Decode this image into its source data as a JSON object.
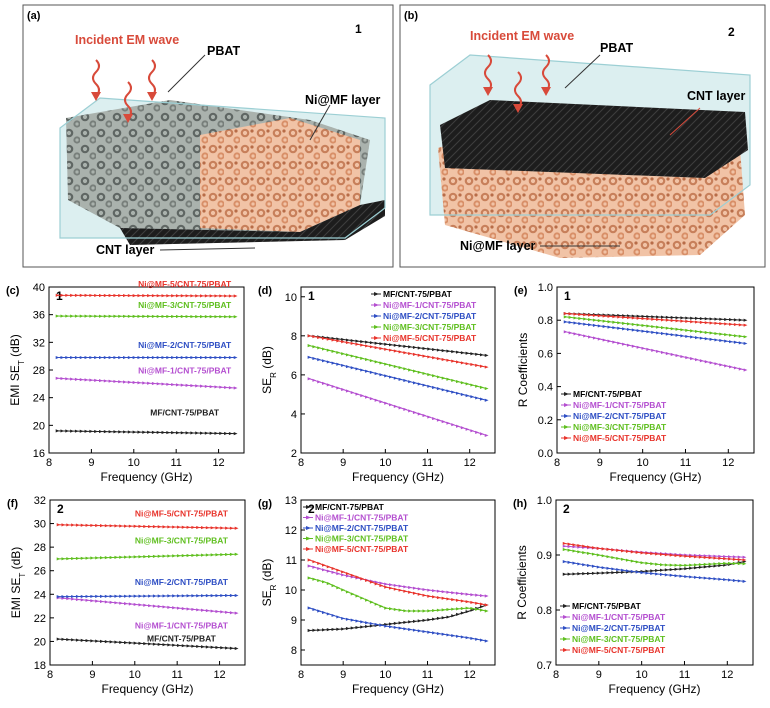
{
  "colors": {
    "black": "#222222",
    "purple": "#b44fd0",
    "blue": "#2f4fc4",
    "green": "#5fbf1f",
    "red": "#e8342c",
    "arrow": "#d84a3a",
    "foam": "#e3a27e",
    "box": "#bfe1e4",
    "cnt": "#1d1d1d"
  },
  "schematics": [
    {
      "panel": "(a)",
      "number": "1",
      "labels": {
        "incident": "Incident EM wave",
        "pbat": "PBAT",
        "middle": "Ni@MF layer",
        "bottom": "CNT layer"
      }
    },
    {
      "panel": "(b)",
      "number": "2",
      "labels": {
        "incident": "Incident EM wave",
        "pbat": "PBAT",
        "middle": "CNT layer",
        "bottom": "Ni@MF layer"
      }
    }
  ],
  "chart_data": [
    {
      "panel": "(c)",
      "number": "1",
      "type": "line",
      "xlabel": "Frequency (GHz)",
      "ylabel": "EMI SE_T (dB)",
      "xlim": [
        8,
        12.6
      ],
      "xticks": [
        8,
        9,
        10,
        11,
        12
      ],
      "ylim": [
        16,
        40
      ],
      "yticks": [
        16,
        20,
        24,
        28,
        32,
        36,
        40
      ],
      "legend": "inline",
      "series": [
        {
          "name": "MF/CNT-75/PBAT",
          "color": "black",
          "x": [
            8.2,
            12.4
          ],
          "y": [
            19.2,
            18.8
          ],
          "label_at": [
            11.2,
            21.4
          ]
        },
        {
          "name": "Ni@MF-1/CNT-75/PBAT",
          "color": "purple",
          "x": [
            8.2,
            12.4
          ],
          "y": [
            26.8,
            25.4
          ],
          "label_at": [
            11.2,
            27.5
          ]
        },
        {
          "name": "Ni@MF-2/CNT-75/PBAT",
          "color": "blue",
          "x": [
            8.2,
            12.4
          ],
          "y": [
            29.8,
            29.8
          ],
          "label_at": [
            11.2,
            31.2
          ]
        },
        {
          "name": "Ni@MF-3/CNT-75/PBAT",
          "color": "green",
          "x": [
            8.2,
            12.4
          ],
          "y": [
            35.8,
            35.7
          ],
          "label_at": [
            11.2,
            37.0
          ]
        },
        {
          "name": "Ni@MF-5/CNT-75/PBAT",
          "color": "red",
          "x": [
            8.2,
            12.4
          ],
          "y": [
            38.8,
            38.7
          ],
          "label_at": [
            11.2,
            40.0
          ]
        }
      ]
    },
    {
      "panel": "(d)",
      "number": "1",
      "type": "line",
      "xlabel": "Frequency (GHz)",
      "ylabel": "SE_R (dB)",
      "xlim": [
        8,
        12.6
      ],
      "xticks": [
        8,
        9,
        10,
        11,
        12
      ],
      "ylim": [
        2,
        10.5
      ],
      "yticks": [
        2,
        4,
        6,
        8,
        10
      ],
      "legend": "top-right",
      "series": [
        {
          "name": "MF/CNT-75/PBAT",
          "color": "black",
          "x": [
            8.2,
            12.4
          ],
          "y": [
            8.0,
            7.0
          ]
        },
        {
          "name": "Ni@MF-1/CNT-75/PBAT",
          "color": "purple",
          "x": [
            8.2,
            12.4
          ],
          "y": [
            5.8,
            2.9
          ]
        },
        {
          "name": "Ni@MF-2/CNT-75/PBAT",
          "color": "blue",
          "x": [
            8.2,
            12.4
          ],
          "y": [
            6.9,
            4.7
          ]
        },
        {
          "name": "Ni@MF-3/CNT-75/PBAT",
          "color": "green",
          "x": [
            8.2,
            12.4
          ],
          "y": [
            7.5,
            5.3
          ]
        },
        {
          "name": "Ni@MF-5/CNT-75/PBAT",
          "color": "red",
          "x": [
            8.2,
            12.4
          ],
          "y": [
            8.0,
            6.4
          ]
        }
      ]
    },
    {
      "panel": "(e)",
      "number": "1",
      "type": "line",
      "xlabel": "Frequency (GHz)",
      "ylabel": "R Coefficients",
      "xlim": [
        8,
        12.6
      ],
      "xticks": [
        8,
        9,
        10,
        11,
        12
      ],
      "ylim": [
        0,
        1.0
      ],
      "yticks": [
        0.0,
        0.2,
        0.4,
        0.6,
        0.8,
        1.0
      ],
      "legend": "bottom-left",
      "series": [
        {
          "name": "MF/CNT-75/PBAT",
          "color": "black",
          "x": [
            8.2,
            12.4
          ],
          "y": [
            0.84,
            0.8
          ]
        },
        {
          "name": "Ni@MF-1/CNT-75/PBAT",
          "color": "purple",
          "x": [
            8.2,
            12.4
          ],
          "y": [
            0.73,
            0.5
          ]
        },
        {
          "name": "Ni@MF-2/CNT-75/PBAT",
          "color": "blue",
          "x": [
            8.2,
            12.4
          ],
          "y": [
            0.79,
            0.66
          ]
        },
        {
          "name": "Ni@MF-3/CNT-75/PBAT",
          "color": "green",
          "x": [
            8.2,
            12.4
          ],
          "y": [
            0.82,
            0.7
          ]
        },
        {
          "name": "Ni@MF-5/CNT-75/PBAT",
          "color": "red",
          "x": [
            8.2,
            12.4
          ],
          "y": [
            0.84,
            0.77
          ]
        }
      ]
    },
    {
      "panel": "(f)",
      "number": "2",
      "type": "line",
      "xlabel": "Frequency (GHz)",
      "ylabel": "EMI SE_T (dB)",
      "xlim": [
        8,
        12.6
      ],
      "xticks": [
        8,
        9,
        10,
        11,
        12
      ],
      "ylim": [
        18,
        32
      ],
      "yticks": [
        18,
        20,
        22,
        24,
        26,
        28,
        30,
        32
      ],
      "legend": "inline",
      "series": [
        {
          "name": "MF/CNT-75/PBAT",
          "color": "black",
          "x": [
            8.2,
            12.4
          ],
          "y": [
            20.2,
            19.4
          ],
          "label_at": [
            11.1,
            20.0
          ]
        },
        {
          "name": "Ni@MF-1/CNT-75/PBAT",
          "color": "purple",
          "x": [
            8.2,
            12.4
          ],
          "y": [
            23.7,
            22.4
          ],
          "label_at": [
            11.1,
            21.1
          ]
        },
        {
          "name": "Ni@MF-2/CNT-75/PBAT",
          "color": "blue",
          "x": [
            8.2,
            12.4
          ],
          "y": [
            23.8,
            23.9
          ],
          "label_at": [
            11.1,
            24.8
          ]
        },
        {
          "name": "Ni@MF-3/CNT-75/PBAT",
          "color": "green",
          "x": [
            8.2,
            12.4
          ],
          "y": [
            27.0,
            27.4
          ],
          "label_at": [
            11.1,
            28.3
          ]
        },
        {
          "name": "Ni@MF-5/CNT-75/PBAT",
          "color": "red",
          "x": [
            8.2,
            12.4
          ],
          "y": [
            29.9,
            29.6
          ],
          "label_at": [
            11.1,
            30.6
          ]
        }
      ]
    },
    {
      "panel": "(g)",
      "number": "2",
      "type": "line",
      "xlabel": "Frequency (GHz)",
      "ylabel": "SE_R (dB)",
      "xlim": [
        8,
        12.6
      ],
      "xticks": [
        8,
        9,
        10,
        11,
        12
      ],
      "ylim": [
        7.5,
        13
      ],
      "yticks": [
        8,
        9,
        10,
        11,
        12,
        13
      ],
      "legend": "top-left",
      "series": [
        {
          "name": "MF/CNT-75/PBAT",
          "color": "black",
          "x": [
            8.2,
            9.0,
            10.0,
            11.0,
            11.5,
            12.0,
            12.4
          ],
          "y": [
            8.65,
            8.7,
            8.85,
            9.0,
            9.1,
            9.3,
            9.5
          ]
        },
        {
          "name": "Ni@MF-1/CNT-75/PBAT",
          "color": "purple",
          "x": [
            8.2,
            9.0,
            10.0,
            11.0,
            12.0,
            12.4
          ],
          "y": [
            10.8,
            10.5,
            10.2,
            10.0,
            9.85,
            9.8
          ]
        },
        {
          "name": "Ni@MF-2/CNT-75/PBAT",
          "color": "blue",
          "x": [
            8.2,
            9.0,
            10.0,
            11.0,
            12.0,
            12.4
          ],
          "y": [
            9.4,
            9.05,
            8.8,
            8.6,
            8.4,
            8.3
          ]
        },
        {
          "name": "Ni@MF-3/CNT-75/PBAT",
          "color": "green",
          "x": [
            8.2,
            8.6,
            9.0,
            9.5,
            10.0,
            10.5,
            11.0,
            11.5,
            12.0,
            12.4
          ],
          "y": [
            10.4,
            10.25,
            10.0,
            9.7,
            9.4,
            9.3,
            9.3,
            9.35,
            9.4,
            9.3
          ]
        },
        {
          "name": "Ni@MF-5/CNT-75/PBAT",
          "color": "red",
          "x": [
            8.2,
            9.0,
            10.0,
            11.0,
            12.0,
            12.4
          ],
          "y": [
            11.0,
            10.6,
            10.1,
            9.8,
            9.6,
            9.5
          ]
        }
      ]
    },
    {
      "panel": "(h)",
      "number": "2",
      "type": "line",
      "xlabel": "Frequency (GHz)",
      "ylabel": "R Coefficients",
      "xlim": [
        8,
        12.6
      ],
      "xticks": [
        8,
        9,
        10,
        11,
        12
      ],
      "ylim": [
        0.7,
        1.0
      ],
      "yticks": [
        0.7,
        0.8,
        0.9,
        1.0
      ],
      "legend": "bottom-left",
      "series": [
        {
          "name": "MF/CNT-75/PBAT",
          "color": "black",
          "x": [
            8.2,
            9.0,
            10.0,
            11.0,
            12.0,
            12.4
          ],
          "y": [
            0.865,
            0.867,
            0.87,
            0.875,
            0.882,
            0.888
          ]
        },
        {
          "name": "Ni@MF-1/CNT-75/PBAT",
          "color": "purple",
          "x": [
            8.2,
            9.0,
            10.0,
            11.0,
            12.0,
            12.4
          ],
          "y": [
            0.916,
            0.912,
            0.905,
            0.9,
            0.897,
            0.896
          ]
        },
        {
          "name": "Ni@MF-2/CNT-75/PBAT",
          "color": "blue",
          "x": [
            8.2,
            9.0,
            10.0,
            11.0,
            12.0,
            12.4
          ],
          "y": [
            0.888,
            0.878,
            0.868,
            0.861,
            0.855,
            0.852
          ]
        },
        {
          "name": "Ni@MF-3/CNT-75/PBAT",
          "color": "green",
          "x": [
            8.2,
            9.0,
            9.5,
            10.0,
            10.5,
            11.0,
            11.5,
            12.0,
            12.4
          ],
          "y": [
            0.91,
            0.9,
            0.893,
            0.886,
            0.882,
            0.881,
            0.883,
            0.885,
            0.884
          ]
        },
        {
          "name": "Ni@MF-5/CNT-75/PBAT",
          "color": "red",
          "x": [
            8.2,
            9.0,
            10.0,
            11.0,
            12.0,
            12.4
          ],
          "y": [
            0.921,
            0.912,
            0.904,
            0.898,
            0.893,
            0.891
          ]
        }
      ]
    }
  ]
}
